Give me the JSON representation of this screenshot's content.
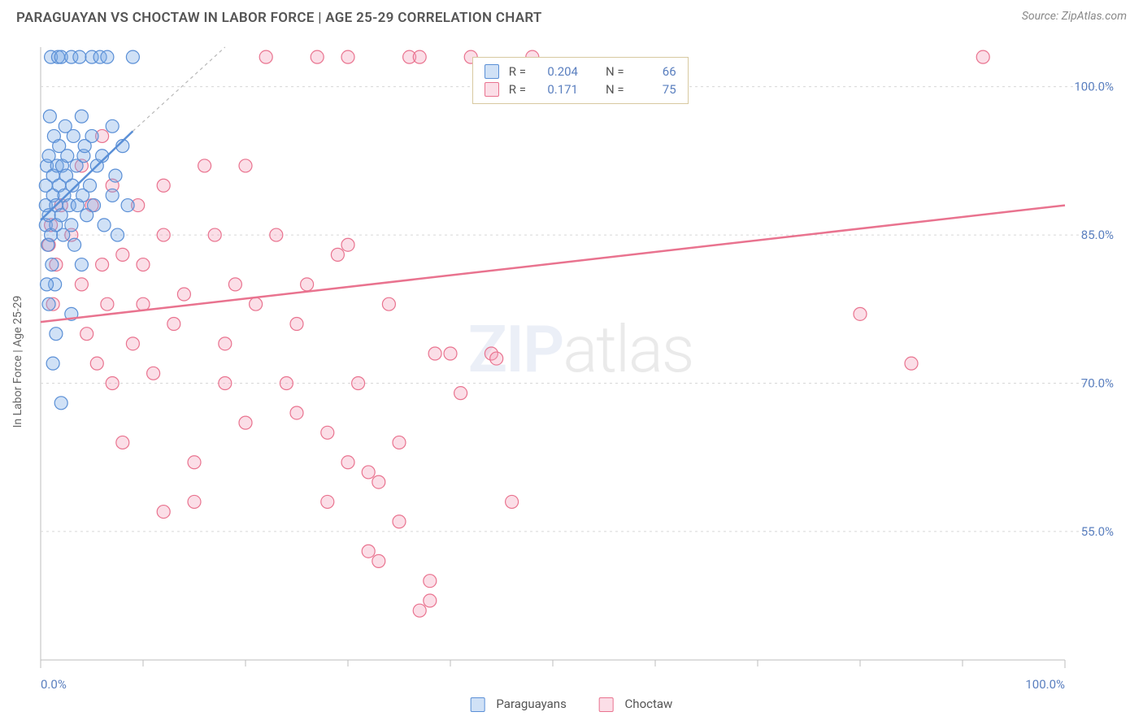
{
  "header": {
    "title": "PARAGUAYAN VS CHOCTAW IN LABOR FORCE | AGE 25-29 CORRELATION CHART",
    "source_label": "Source:",
    "source_name": "ZipAtlas.com"
  },
  "watermark": {
    "zip": "ZIP",
    "atlas": "atlas"
  },
  "axes": {
    "y_label": "In Labor Force | Age 25-29",
    "x_min": 0.0,
    "x_max": 100.0,
    "y_min": 42.0,
    "y_max": 104.0,
    "y_ticks": [
      55.0,
      70.0,
      85.0,
      100.0
    ],
    "y_tick_labels": [
      "55.0%",
      "70.0%",
      "85.0%",
      "100.0%"
    ],
    "x_ticks": [
      0.0,
      100.0
    ],
    "x_tick_labels": [
      "0.0%",
      "100.0%"
    ],
    "x_minor_ticks": [
      10,
      20,
      30,
      40,
      50,
      60,
      70,
      80,
      90
    ],
    "grid_color": "#d7d7d7",
    "axis_border_color": "#bdbdbd"
  },
  "series": {
    "paraguayans": {
      "label": "Paraguayans",
      "color_stroke": "#5a8fd6",
      "color_fill": "rgba(120,170,230,0.35)",
      "R": "0.204",
      "N": "66",
      "trend": {
        "x1": 0,
        "y1": 86.5,
        "x2": 9,
        "y2": 95.5
      },
      "trend_ext": {
        "x1": 9,
        "y1": 95.5,
        "x2": 18,
        "y2": 104.0
      },
      "marker_r": 8,
      "points": [
        [
          0.5,
          88
        ],
        [
          0.5,
          86
        ],
        [
          0.5,
          90
        ],
        [
          0.6,
          92
        ],
        [
          0.7,
          84
        ],
        [
          0.8,
          87
        ],
        [
          0.8,
          93
        ],
        [
          0.9,
          97
        ],
        [
          1.0,
          103
        ],
        [
          1.0,
          85
        ],
        [
          1.1,
          82
        ],
        [
          1.2,
          89
        ],
        [
          1.2,
          91
        ],
        [
          1.3,
          95
        ],
        [
          1.4,
          80
        ],
        [
          1.5,
          88
        ],
        [
          1.5,
          86
        ],
        [
          1.6,
          92
        ],
        [
          1.7,
          103
        ],
        [
          1.8,
          94
        ],
        [
          1.8,
          90
        ],
        [
          2.0,
          87
        ],
        [
          2.0,
          103
        ],
        [
          2.1,
          92
        ],
        [
          2.2,
          85
        ],
        [
          2.3,
          89
        ],
        [
          2.4,
          96
        ],
        [
          2.5,
          91
        ],
        [
          2.6,
          93
        ],
        [
          2.8,
          88
        ],
        [
          3.0,
          103
        ],
        [
          3.0,
          86
        ],
        [
          3.1,
          90
        ],
        [
          3.2,
          95
        ],
        [
          3.3,
          84
        ],
        [
          3.5,
          92
        ],
        [
          3.6,
          88
        ],
        [
          3.8,
          103
        ],
        [
          4.0,
          97
        ],
        [
          4.0,
          82
        ],
        [
          4.1,
          89
        ],
        [
          4.2,
          93
        ],
        [
          4.3,
          94
        ],
        [
          4.5,
          87
        ],
        [
          4.8,
          90
        ],
        [
          5.0,
          103
        ],
        [
          5.0,
          95
        ],
        [
          5.2,
          88
        ],
        [
          5.5,
          92
        ],
        [
          5.8,
          103
        ],
        [
          6.0,
          93
        ],
        [
          6.2,
          86
        ],
        [
          6.5,
          103
        ],
        [
          7.0,
          96
        ],
        [
          7.0,
          89
        ],
        [
          7.3,
          91
        ],
        [
          7.5,
          85
        ],
        [
          8.0,
          94
        ],
        [
          8.5,
          88
        ],
        [
          9.0,
          103
        ],
        [
          1.5,
          75
        ],
        [
          2.0,
          68
        ],
        [
          0.8,
          78
        ],
        [
          1.2,
          72
        ],
        [
          0.6,
          80
        ],
        [
          3.0,
          77
        ]
      ]
    },
    "choctaw": {
      "label": "Choctaw",
      "color_stroke": "#e9738f",
      "color_fill": "rgba(244,160,185,0.35)",
      "R": "0.171",
      "N": "75",
      "trend": {
        "x1": 0,
        "y1": 76.2,
        "x2": 100,
        "y2": 88.0
      },
      "marker_r": 8,
      "points": [
        [
          3,
          85
        ],
        [
          4,
          80
        ],
        [
          4.5,
          75
        ],
        [
          5,
          88
        ],
        [
          5.5,
          72
        ],
        [
          6,
          82
        ],
        [
          6.5,
          78
        ],
        [
          7,
          90
        ],
        [
          7,
          70
        ],
        [
          8,
          83
        ],
        [
          8,
          64
        ],
        [
          9,
          74
        ],
        [
          9.5,
          88
        ],
        [
          10,
          78
        ],
        [
          10,
          82
        ],
        [
          11,
          71
        ],
        [
          12,
          85
        ],
        [
          12,
          57
        ],
        [
          13,
          76
        ],
        [
          14,
          79
        ],
        [
          15,
          58
        ],
        [
          16,
          92
        ],
        [
          17,
          85
        ],
        [
          18,
          74
        ],
        [
          19,
          80
        ],
        [
          20,
          92
        ],
        [
          21,
          78
        ],
        [
          22,
          103
        ],
        [
          23,
          85
        ],
        [
          24,
          70
        ],
        [
          25,
          76
        ],
        [
          26,
          80
        ],
        [
          27,
          103
        ],
        [
          28,
          65
        ],
        [
          29,
          83
        ],
        [
          30,
          103
        ],
        [
          31,
          70
        ],
        [
          32,
          61
        ],
        [
          33,
          60
        ],
        [
          34,
          78
        ],
        [
          35,
          64
        ],
        [
          36,
          103
        ],
        [
          37,
          103
        ],
        [
          38,
          50
        ],
        [
          32,
          53
        ],
        [
          40,
          73
        ],
        [
          41,
          69
        ],
        [
          42,
          103
        ],
        [
          44,
          73
        ],
        [
          46,
          58
        ],
        [
          48,
          103
        ],
        [
          38,
          48
        ],
        [
          30,
          84
        ],
        [
          12,
          90
        ],
        [
          4,
          92
        ],
        [
          6,
          95
        ],
        [
          1,
          86
        ],
        [
          2,
          88
        ],
        [
          1.5,
          82
        ],
        [
          1.2,
          78
        ],
        [
          0.8,
          84
        ],
        [
          38.5,
          73
        ],
        [
          44.5,
          72.5
        ],
        [
          80,
          77
        ],
        [
          85,
          72
        ],
        [
          92,
          103
        ],
        [
          33,
          52
        ],
        [
          37,
          47
        ],
        [
          35,
          56
        ],
        [
          30,
          62
        ],
        [
          28,
          58
        ],
        [
          15,
          62
        ],
        [
          18,
          70
        ],
        [
          20,
          66
        ],
        [
          25,
          67
        ]
      ]
    }
  },
  "legend_box": {
    "top_pct": 1.5,
    "left_pct": 40.0,
    "r_label": "R =",
    "n_label": "N ="
  },
  "bottom_legend": {
    "items": [
      "paraguayans",
      "choctaw"
    ]
  }
}
